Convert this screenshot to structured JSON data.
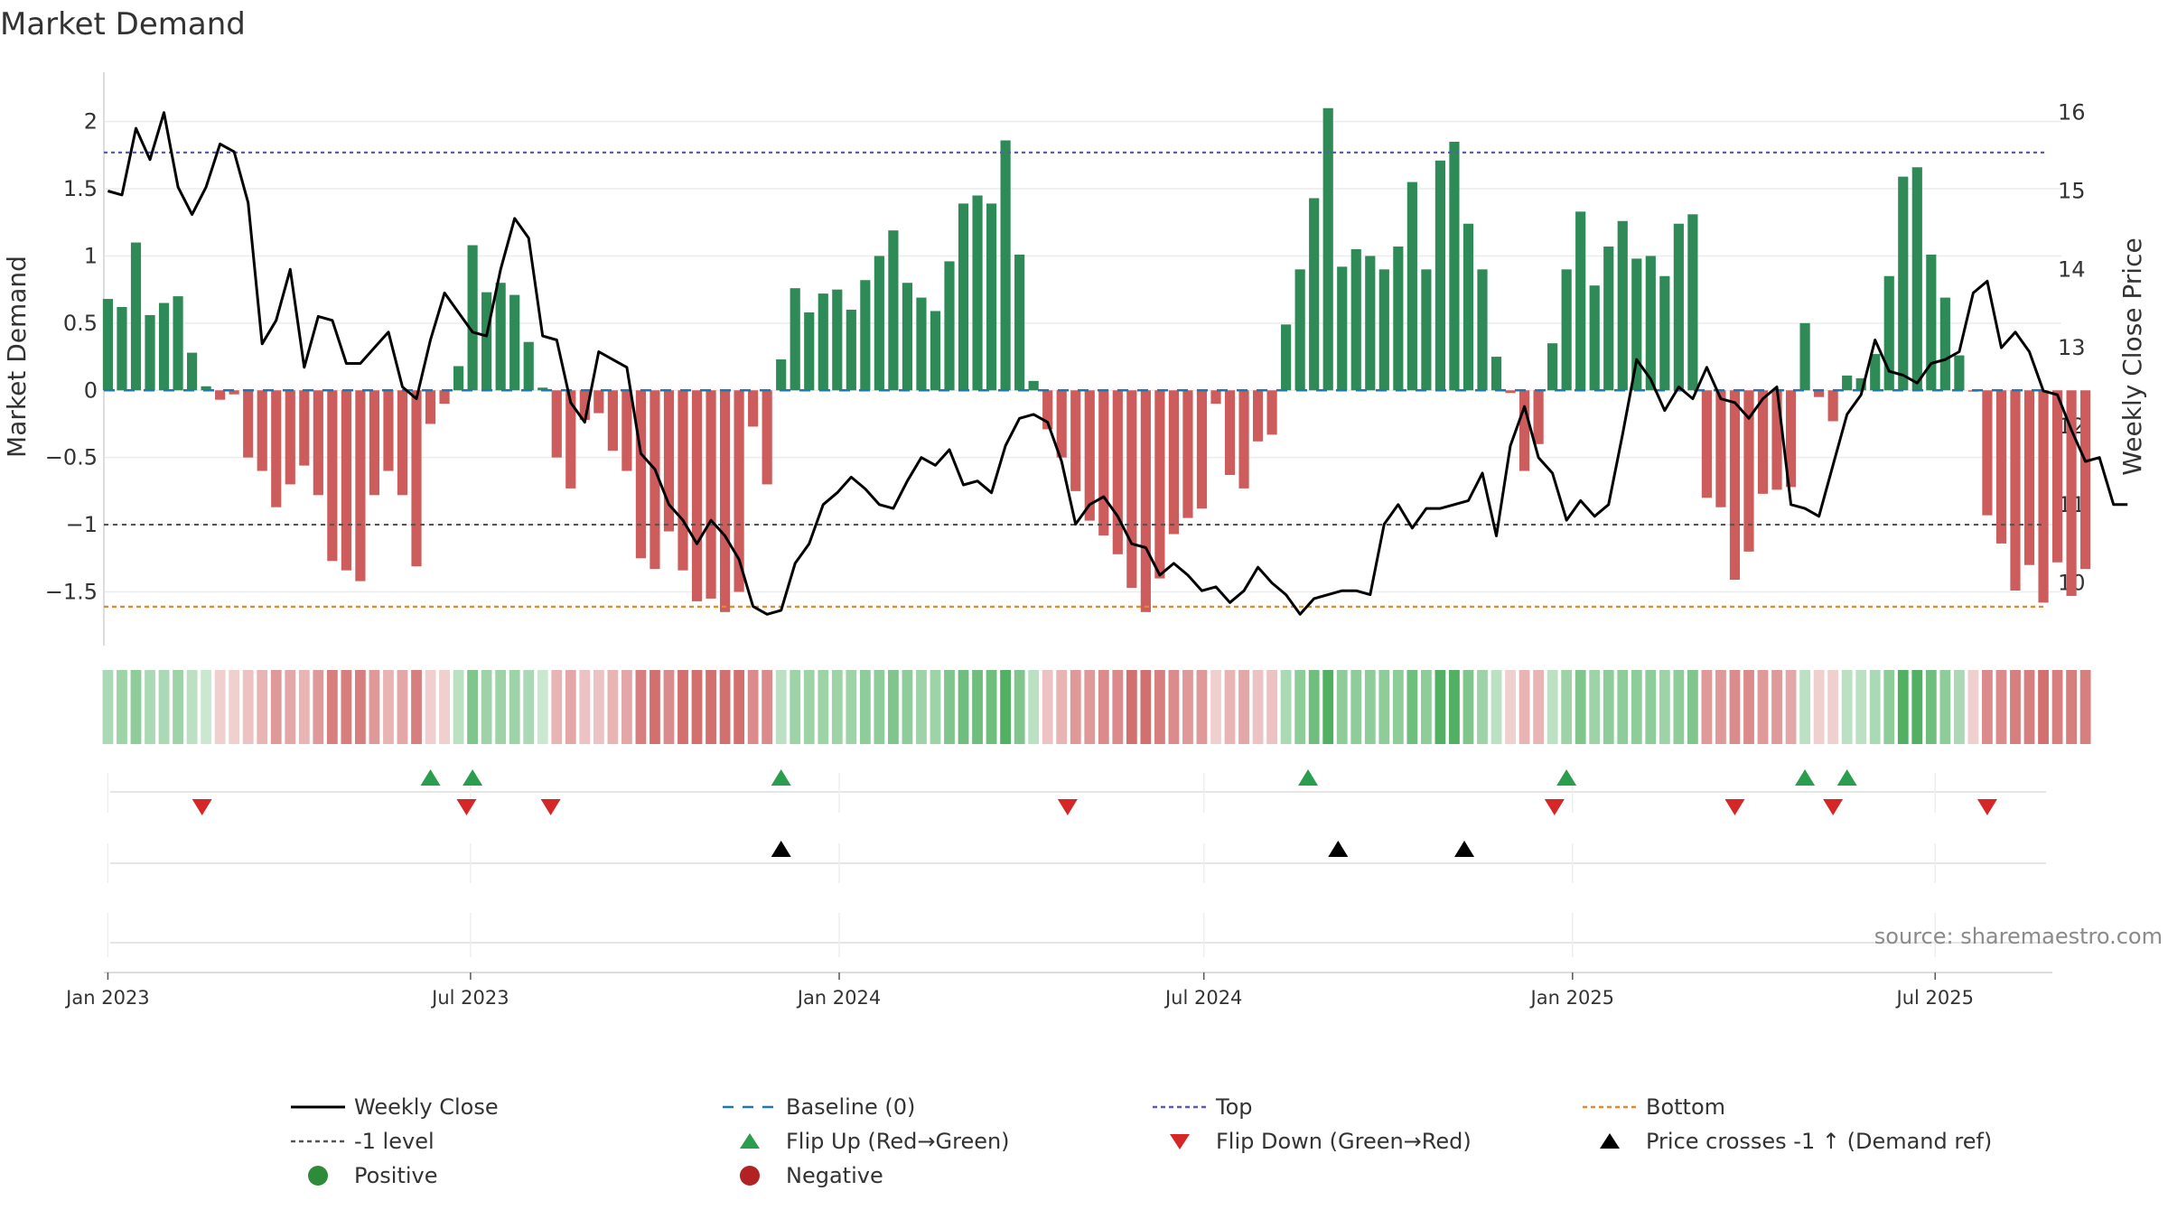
{
  "chart_data": {
    "type": "bar",
    "title": "Market Demand",
    "ylabel": "Market Demand",
    "y2label": "Weekly Close Price",
    "ylim": [
      -1.9,
      2.3
    ],
    "y2lim": [
      9.2,
      16.4
    ],
    "yticks": [
      2,
      1.5,
      1,
      0.5,
      0,
      -0.5,
      -1,
      -1.5
    ],
    "ytick_labels": [
      "2",
      "1.5",
      "1",
      "0.5",
      "0",
      "−0.5",
      "−1",
      "−1.5"
    ],
    "y2ticks": [
      16,
      15,
      14,
      13,
      12,
      11,
      10
    ],
    "y2tick_labels": [
      "16",
      "15",
      "14",
      "13",
      "12",
      "11",
      "10"
    ],
    "x_start": "2023-01-01",
    "week_days": 7,
    "x_range_days": [
      -2,
      975
    ],
    "x_ticks": [
      {
        "label": "Jan 2023",
        "day": 0
      },
      {
        "label": "Jul 2023",
        "day": 181
      },
      {
        "label": "Jan 2024",
        "day": 365
      },
      {
        "label": "Jul 2024",
        "day": 547
      },
      {
        "label": "Jan 2025",
        "day": 731
      },
      {
        "label": "Jul 2025",
        "day": 912
      }
    ],
    "reference_lines": [
      {
        "name": "Top",
        "value": 1.77,
        "color": "#5b5bb5",
        "dash": "4,4"
      },
      {
        "name": "-1 level",
        "value": -1.0,
        "color": "#555555",
        "dash": "5,5"
      },
      {
        "name": "Bottom",
        "value": -1.61,
        "color": "#e8872b",
        "dash": "5,4"
      },
      {
        "name": "Baseline (0)",
        "value": 0,
        "color": "#1f77b4",
        "dash": "12,10"
      }
    ],
    "series": [
      {
        "name": "Market Demand",
        "type": "bar",
        "values": [
          0.68,
          0.62,
          1.1,
          0.56,
          0.65,
          0.7,
          0.28,
          0.03,
          -0.07,
          -0.03,
          -0.5,
          -0.6,
          -0.87,
          -0.7,
          -0.56,
          -0.78,
          -1.27,
          -1.34,
          -1.42,
          -0.78,
          -0.6,
          -0.78,
          -1.31,
          -0.25,
          -0.1,
          0.18,
          1.08,
          0.73,
          0.8,
          0.71,
          0.36,
          0.02,
          -0.5,
          -0.73,
          -0.22,
          -0.17,
          -0.45,
          -0.6,
          -1.25,
          -1.33,
          -1.05,
          -1.34,
          -1.57,
          -1.55,
          -1.65,
          -1.5,
          -0.27,
          -0.7,
          0.23,
          0.76,
          0.58,
          0.72,
          0.75,
          0.6,
          0.82,
          1.0,
          1.19,
          0.8,
          0.69,
          0.59,
          0.96,
          1.39,
          1.45,
          1.39,
          1.86,
          1.01,
          0.07,
          -0.29,
          -0.5,
          -0.75,
          -0.97,
          -1.08,
          -1.22,
          -1.47,
          -1.65,
          -1.4,
          -1.07,
          -0.95,
          -0.88,
          -0.1,
          -0.63,
          -0.73,
          -0.38,
          -0.33,
          0.49,
          0.9,
          1.43,
          2.1,
          0.92,
          1.05,
          1.0,
          0.9,
          1.07,
          1.55,
          0.9,
          1.71,
          1.85,
          1.24,
          0.9,
          0.25,
          -0.02,
          -0.6,
          -0.4,
          0.35,
          0.9,
          1.33,
          0.78,
          1.07,
          1.26,
          0.98,
          1.0,
          0.85,
          1.24,
          1.31,
          -0.8,
          -0.87,
          -1.41,
          -1.2,
          -0.77,
          -0.74,
          -0.72,
          0.5,
          -0.05,
          -0.23,
          0.11,
          0.09,
          0.27,
          0.85,
          1.59,
          1.66,
          1.01,
          0.69,
          0.26,
          -0.01,
          -0.93,
          -1.14,
          -1.49,
          -1.3,
          -1.58,
          -1.28,
          -1.53,
          -1.33
        ]
      },
      {
        "name": "Weekly Close",
        "type": "line",
        "color": "#000000",
        "values": [
          15.0,
          14.95,
          15.8,
          15.4,
          16.0,
          15.05,
          14.7,
          15.05,
          15.6,
          15.5,
          14.85,
          13.05,
          13.35,
          14.0,
          12.75,
          13.4,
          13.35,
          12.8,
          12.8,
          13.0,
          13.2,
          12.5,
          12.35,
          13.1,
          13.7,
          13.45,
          13.2,
          13.15,
          14.0,
          14.65,
          14.4,
          13.15,
          13.1,
          12.3,
          12.05,
          12.95,
          12.85,
          12.75,
          11.65,
          11.45,
          11.0,
          10.8,
          10.5,
          10.8,
          10.6,
          10.3,
          9.7,
          9.6,
          9.65,
          10.25,
          10.5,
          11.0,
          11.15,
          11.35,
          11.2,
          11.0,
          10.95,
          11.3,
          11.6,
          11.5,
          11.7,
          11.25,
          11.3,
          11.15,
          11.75,
          12.1,
          12.15,
          12.05,
          11.55,
          10.75,
          11.0,
          11.1,
          10.85,
          10.5,
          10.45,
          10.1,
          10.25,
          10.1,
          9.9,
          9.95,
          9.75,
          9.9,
          10.2,
          10.0,
          9.85,
          9.6,
          9.8,
          9.85,
          9.9,
          9.9,
          9.85,
          10.75,
          11.0,
          10.7,
          10.95,
          10.95,
          11.0,
          11.05,
          11.4,
          10.6,
          11.75,
          12.25,
          11.6,
          11.4,
          10.8,
          11.05,
          10.85,
          11.0,
          11.9,
          12.85,
          12.6,
          12.2,
          12.5,
          12.35,
          12.75,
          12.35,
          12.3,
          12.1,
          12.35,
          12.5,
          11.0,
          10.95,
          10.85,
          11.5,
          12.15,
          12.4,
          13.1,
          12.7,
          12.65,
          12.55,
          12.8,
          12.85,
          12.95,
          13.7,
          13.85,
          13.0,
          13.2,
          12.95,
          12.45,
          12.4,
          11.95,
          11.55,
          11.6,
          11.0,
          11.0
        ]
      }
    ],
    "heat_strip": {
      "name": "Demand heat strip",
      "values": [
        0.3,
        0.4,
        0.5,
        0.3,
        0.3,
        0.4,
        0.2,
        0.1,
        -0.1,
        -0.1,
        -0.2,
        -0.3,
        -0.5,
        -0.4,
        -0.3,
        -0.5,
        -0.7,
        -0.7,
        -0.7,
        -0.5,
        -0.3,
        -0.4,
        -0.7,
        -0.1,
        -0.1,
        0.2,
        0.6,
        0.4,
        0.4,
        0.4,
        0.3,
        0.1,
        -0.3,
        -0.4,
        -0.2,
        -0.2,
        -0.3,
        -0.4,
        -0.7,
        -0.8,
        -0.6,
        -0.8,
        -0.8,
        -0.8,
        -0.8,
        -0.8,
        -0.6,
        -0.6,
        0.2,
        0.4,
        0.4,
        0.4,
        0.4,
        0.4,
        0.5,
        0.5,
        0.6,
        0.5,
        0.4,
        0.4,
        0.6,
        0.7,
        0.7,
        0.7,
        0.9,
        0.6,
        0.2,
        -0.2,
        -0.3,
        -0.5,
        -0.5,
        -0.6,
        -0.6,
        -0.8,
        -0.8,
        -0.7,
        -0.6,
        -0.5,
        -0.5,
        -0.1,
        -0.3,
        -0.4,
        -0.2,
        -0.2,
        0.3,
        0.5,
        0.7,
        0.9,
        0.5,
        0.5,
        0.5,
        0.5,
        0.5,
        0.7,
        0.5,
        0.9,
        0.9,
        0.6,
        0.4,
        0.2,
        -0.1,
        -0.3,
        -0.3,
        0.2,
        0.4,
        0.6,
        0.4,
        0.5,
        0.5,
        0.5,
        0.5,
        0.4,
        0.5,
        0.6,
        -0.5,
        -0.5,
        -0.6,
        -0.6,
        -0.5,
        -0.5,
        -0.4,
        0.2,
        -0.1,
        -0.1,
        0.2,
        0.2,
        0.3,
        0.5,
        0.9,
        0.9,
        0.7,
        0.5,
        0.3,
        -0.1,
        -0.6,
        -0.6,
        -0.7,
        -0.7,
        -0.8,
        -0.7,
        -0.7,
        -0.7
      ]
    },
    "flip_up_days": [
      161,
      182,
      336,
      599,
      728,
      847,
      868
    ],
    "flip_down_days": [
      47,
      179,
      221,
      479,
      722,
      812,
      861,
      938
    ],
    "price_cross_days": [
      336,
      614,
      677
    ]
  },
  "source_text": "source: sharemaestro.com",
  "legend": [
    {
      "label": "Weekly Close",
      "symbol": "line",
      "color": "#000000"
    },
    {
      "label": "Baseline (0)",
      "symbol": "dash-line",
      "color": "#1f77b4"
    },
    {
      "label": "Top",
      "symbol": "dot-line",
      "color": "#5b5bb5"
    },
    {
      "label": "Bottom",
      "symbol": "dot-line",
      "color": "#e8872b"
    },
    {
      "label": "-1 level",
      "symbol": "dot-line",
      "color": "#555555"
    },
    {
      "label": "Flip Up (Red→Green)",
      "symbol": "triangle-up",
      "color": "#2a9d4f"
    },
    {
      "label": "Flip Down (Green→Red)",
      "symbol": "triangle-down",
      "color": "#d62728"
    },
    {
      "label": "Price crosses -1 ↑ (Demand ref)",
      "symbol": "triangle-up",
      "color": "#000000"
    },
    {
      "label": "Positive",
      "symbol": "circle",
      "color": "#2e8b3a"
    },
    {
      "label": "Negative",
      "symbol": "circle",
      "color": "#b22222"
    }
  ],
  "colors": {
    "positive_bar": "#2e8b57",
    "negative_bar": "#cd5c5c",
    "grid": "#ececec",
    "axis": "#dddddd"
  }
}
